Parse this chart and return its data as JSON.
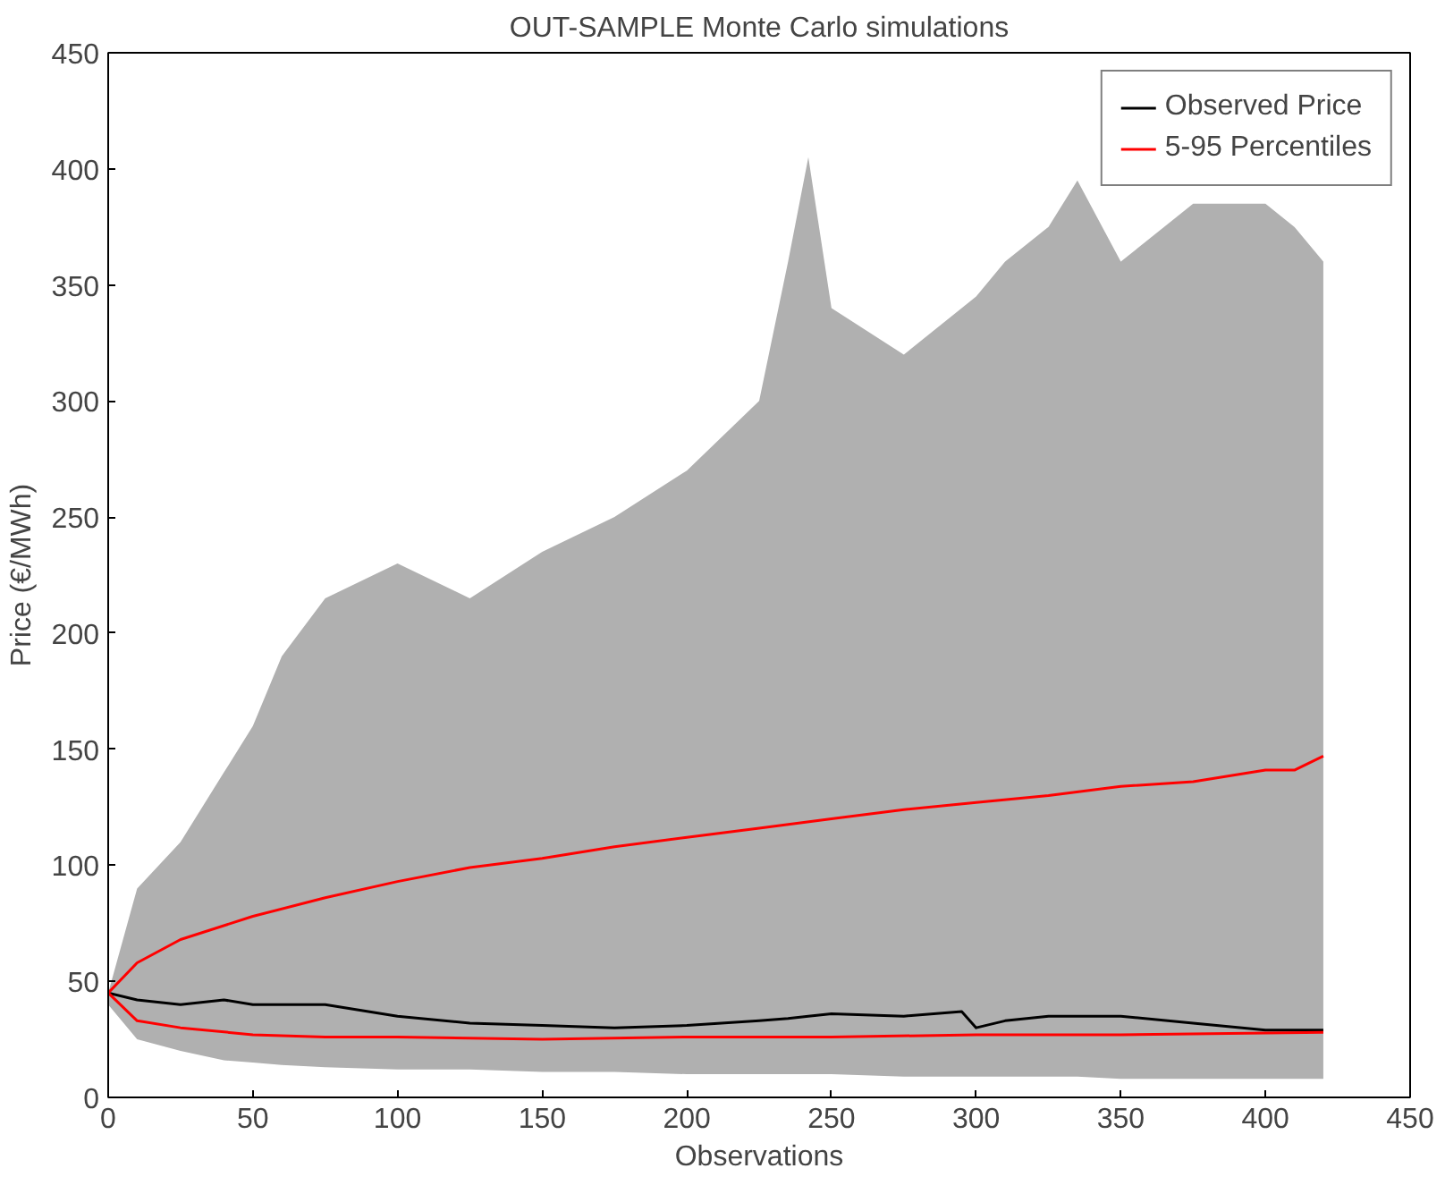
{
  "chart_data": {
    "type": "line",
    "title": "OUT-SAMPLE Monte Carlo simulations",
    "xlabel": "Observations",
    "ylabel": "Price (€/MWh)",
    "xlim": [
      0,
      450
    ],
    "ylim": [
      0,
      450
    ],
    "xticks": [
      0,
      50,
      100,
      150,
      200,
      250,
      300,
      350,
      400,
      450
    ],
    "yticks": [
      0,
      50,
      100,
      150,
      200,
      250,
      300,
      350,
      400,
      450
    ],
    "grid": false,
    "legend": "top right",
    "series": [
      {
        "color": "#000000",
        "name": "Observed Price",
        "x": [
          0,
          10,
          25,
          40,
          50,
          60,
          75,
          100,
          125,
          150,
          175,
          200,
          225,
          235,
          242,
          250,
          275,
          295,
          300,
          310,
          325,
          335,
          350,
          375,
          400,
          410,
          420
        ],
        "values": [
          45,
          42,
          40,
          42,
          40,
          40,
          40,
          35,
          32,
          31,
          30,
          31,
          33,
          34,
          35,
          36,
          35,
          37,
          30,
          33,
          35,
          35,
          35,
          32,
          29,
          29,
          29
        ],
        "lower": [
          40,
          25,
          20,
          16,
          15,
          14,
          13,
          12,
          12,
          11,
          11,
          10,
          10,
          10,
          10,
          10,
          9,
          9,
          9,
          9,
          9,
          9,
          8,
          8,
          8,
          8,
          8
        ],
        "upper": [
          45,
          90,
          110,
          140,
          160,
          190,
          215,
          230,
          215,
          235,
          250,
          270,
          300,
          360,
          405,
          340,
          320,
          340,
          345,
          360,
          375,
          395,
          360,
          385,
          385,
          375,
          360
        ]
      },
      {
        "color": "#ff0000",
        "name": "5-95 Percentiles",
        "x": [
          0,
          10,
          25,
          50,
          75,
          100,
          125,
          150,
          175,
          200,
          225,
          250,
          275,
          300,
          325,
          350,
          375,
          400,
          410,
          420
        ],
        "values": [
          45,
          58,
          68,
          78,
          86,
          93,
          99,
          103,
          108,
          112,
          116,
          120,
          124,
          127,
          130,
          134,
          136,
          141,
          141,
          147
        ]
      },
      {
        "color": "#ff0000",
        "x": [
          0,
          10,
          25,
          50,
          75,
          100,
          150,
          200,
          250,
          300,
          350,
          420
        ],
        "values": [
          45,
          33,
          30,
          27,
          26,
          26,
          25,
          26,
          26,
          27,
          27,
          28
        ]
      }
    ]
  }
}
